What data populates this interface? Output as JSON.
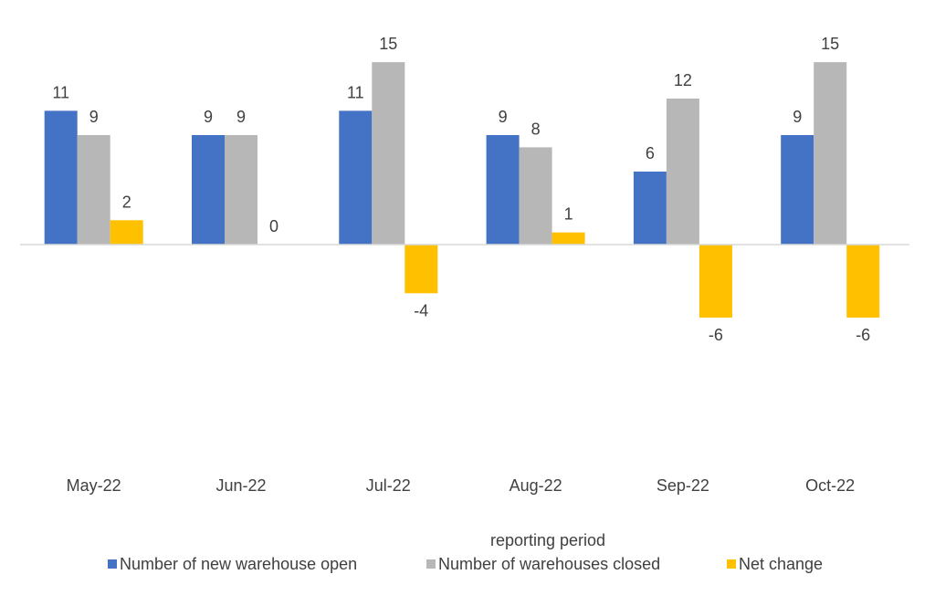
{
  "chart_data": {
    "type": "bar",
    "title": "",
    "xlabel": "reporting period",
    "ylabel": "",
    "ylim": [
      -15,
      15
    ],
    "grid": false,
    "legend_position": "bottom",
    "categories": [
      "May-22",
      "Jun-22",
      "Jul-22",
      "Aug-22",
      "Sep-22",
      "Oct-22"
    ],
    "series": [
      {
        "name": "Number of new warehouse open",
        "color": "#4472C4",
        "values": [
          11,
          9,
          11,
          9,
          6,
          9
        ],
        "labels": [
          "11",
          "9",
          "11",
          "9",
          "6",
          "9"
        ]
      },
      {
        "name": "Number of warehouses closed",
        "color": "#B7B7B7",
        "values": [
          9,
          9,
          15,
          8,
          12,
          15
        ],
        "labels": [
          "9",
          "9",
          "15",
          "8",
          "12",
          "15"
        ]
      },
      {
        "name": "Net change",
        "color": "#FFC000",
        "values": [
          2,
          0,
          -4,
          1,
          -6,
          -6
        ],
        "labels": [
          "2",
          "0",
          "-4",
          "1",
          "-6",
          "-6"
        ]
      }
    ]
  }
}
